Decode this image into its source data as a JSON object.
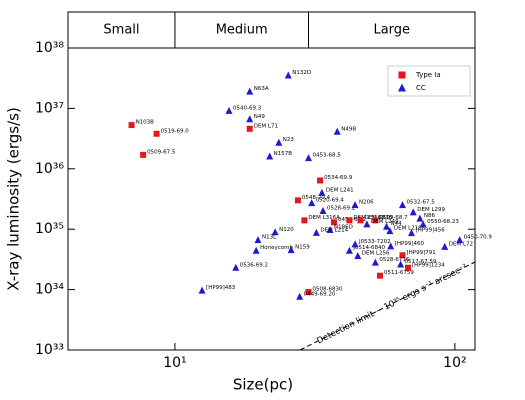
{
  "chart_data": {
    "type": "scatter",
    "regions": {
      "labels": [
        "Small",
        "Medium",
        "Large"
      ],
      "edges": [
        10,
        30
      ]
    },
    "xlabel": "Size(pc)",
    "ylabel": "X-ray luminosity (ergs/s)",
    "xlog": true,
    "ylog": true,
    "xlim": [
      4.15,
      118
    ],
    "ylim": [
      1e+33,
      1e+38
    ],
    "xticks": [
      {
        "value": 10,
        "label": "10¹"
      },
      {
        "value": 100,
        "label": "10²"
      }
    ],
    "yticks": [
      {
        "value": 1e+33,
        "label": "10³³"
      },
      {
        "value": 1e+34,
        "label": "10³⁴"
      },
      {
        "value": 1e+35,
        "label": "10³⁵"
      },
      {
        "value": 1e+36,
        "label": "10³⁶"
      },
      {
        "value": 1e+37,
        "label": "10³⁷"
      },
      {
        "value": 1e+38,
        "label": "10³⁸"
      }
    ],
    "legend": "upper right",
    "annotation": "Detection limit ~ 10³⁵ ergs s⁻¹ arcsec⁻²",
    "series": [
      {
        "name": "Type Ia",
        "color": "#e8151b",
        "marker": "square",
        "x": [
          7.0,
          8.6,
          7.7,
          18.5,
          33,
          27.5,
          37,
          29,
          42,
          46,
          52,
          65,
          68,
          54,
          30
        ],
        "values": [
          5.3e+36,
          3.8e+36,
          1.7e+36,
          4.6e+36,
          6.4e+35,
          3e+35,
          1.3e+35,
          1.4e+35,
          1.4e+35,
          1.4e+35,
          1.4e+35,
          3.7e+34,
          2.3e+34,
          1.7e+34,
          9.1e+33
        ],
        "labels": [
          "N103B",
          "0519-69.0",
          "0509-67.5",
          "DEM L71",
          "0534-69.9",
          "0548-70.4",
          "0454-67.2",
          "DEM L316A",
          "DEM L316B",
          "DEM L238",
          "0509-68.7",
          "[HP99]791",
          "[HP99]1234",
          "0511-6759",
          "0508-6830"
        ]
      },
      {
        "name": "CC",
        "color": "#1c1ccf",
        "marker": "triangle",
        "x": [
          25.4,
          18.5,
          15.6,
          18.5,
          38,
          23.5,
          21.8,
          30,
          33.5,
          30.8,
          33.8,
          44,
          22.8,
          35.8,
          32,
          19.8,
          19.5,
          26,
          16.5,
          12.5,
          27.9,
          48.5,
          58.6,
          57,
          65,
          71,
          75,
          77,
          70,
          59,
          92,
          104,
          45,
          52,
          42,
          44,
          64
        ],
        "values": [
          3.5e+37,
          1.9e+37,
          9.1e+36,
          6.6e+36,
          4.1e+36,
          2.7e+36,
          1.6e+36,
          1.5e+36,
          4e+35,
          2.7e+35,
          2e+35,
          2.5e+35,
          8.9e+34,
          9.7e+34,
          8.7e+34,
          6.6e+34,
          4.4e+34,
          4.5e+34,
          2.3e+34,
          9.6e+33,
          7.6e+33,
          1.2e+35,
          9.3e+34,
          1.1e+35,
          2.5e+35,
          1.9e+35,
          1.5e+35,
          1.2e+35,
          8.6e+34,
          5.2e+34,
          5.1e+34,
          6.6e+34,
          3.6e+34,
          2.8e+34,
          4.4e+34,
          5.6e+34,
          2.6e+34
        ],
        "labels": [
          "N132D",
          "N63A",
          "0540-69.3",
          "N49",
          "N49B",
          "N23",
          "N157B",
          "0453-68.5",
          "DEM L241",
          "0520-69.4",
          "0528-69.2",
          "N206",
          "N120",
          "N186D",
          "DEM L214",
          "N13L",
          "Honeycomb",
          "N159",
          "0536-69.2",
          "[HP99]483",
          "0449-69.20",
          "DEM L249",
          "DEM L218",
          "N44",
          "0532-67.5",
          "DEM L299",
          "N86",
          "0550-68.23",
          "[HP99]456",
          "[HP99]460",
          "DEM L72",
          "0450-70.9",
          "DEM L256",
          "0528-6716",
          "J0514-6840",
          "J0533-7202",
          "0517-67.59"
        ]
      }
    ]
  }
}
